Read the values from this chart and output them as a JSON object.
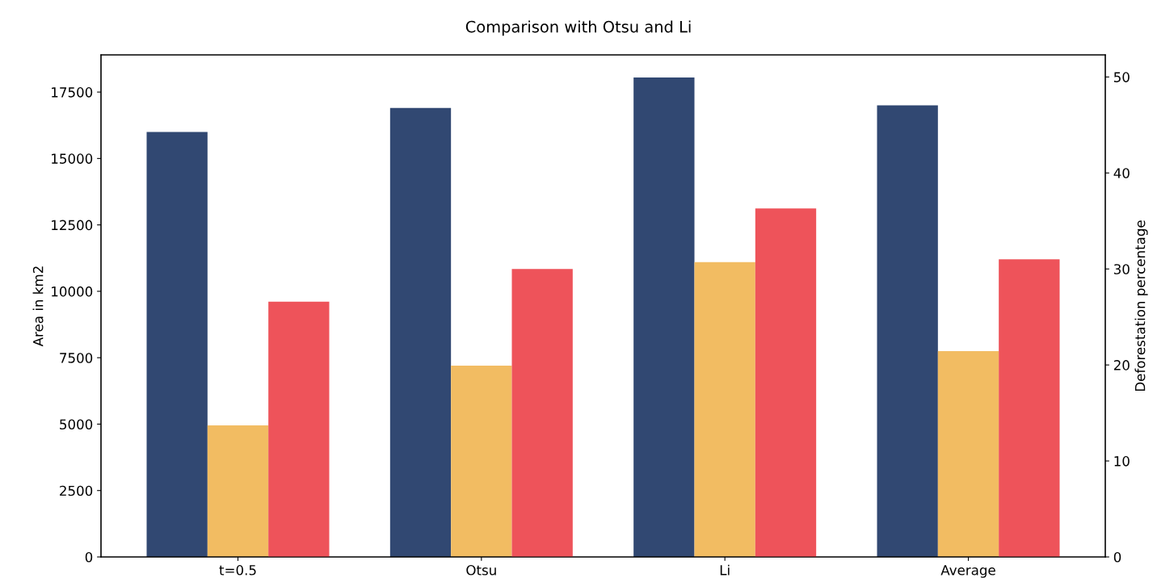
{
  "chart_data": {
    "type": "bar",
    "title": "Comparison with Otsu and Li",
    "ylabel": "Area in km2",
    "y2label": "Deforestation percentage",
    "categories": [
      "t=0.5",
      "Otsu",
      "Li",
      "Average"
    ],
    "series": [
      {
        "color": "#314872",
        "values": [
          16000,
          16900,
          18050,
          17000
        ]
      },
      {
        "color": "#f2bc62",
        "values": [
          4950,
          7200,
          11100,
          7750
        ]
      },
      {
        "color": "#ee535a",
        "values": [
          26.6,
          30.0,
          36.3,
          31.0
        ],
        "axis": "y2"
      }
    ],
    "ylim": [
      0,
      18900
    ],
    "yticks": [
      0,
      2500,
      5000,
      7500,
      10000,
      12500,
      15000,
      17500
    ],
    "y2lim": [
      0,
      52.3
    ],
    "y2ticks": [
      0,
      10,
      20,
      30,
      40,
      50
    ],
    "grid": false,
    "legend": false
  }
}
